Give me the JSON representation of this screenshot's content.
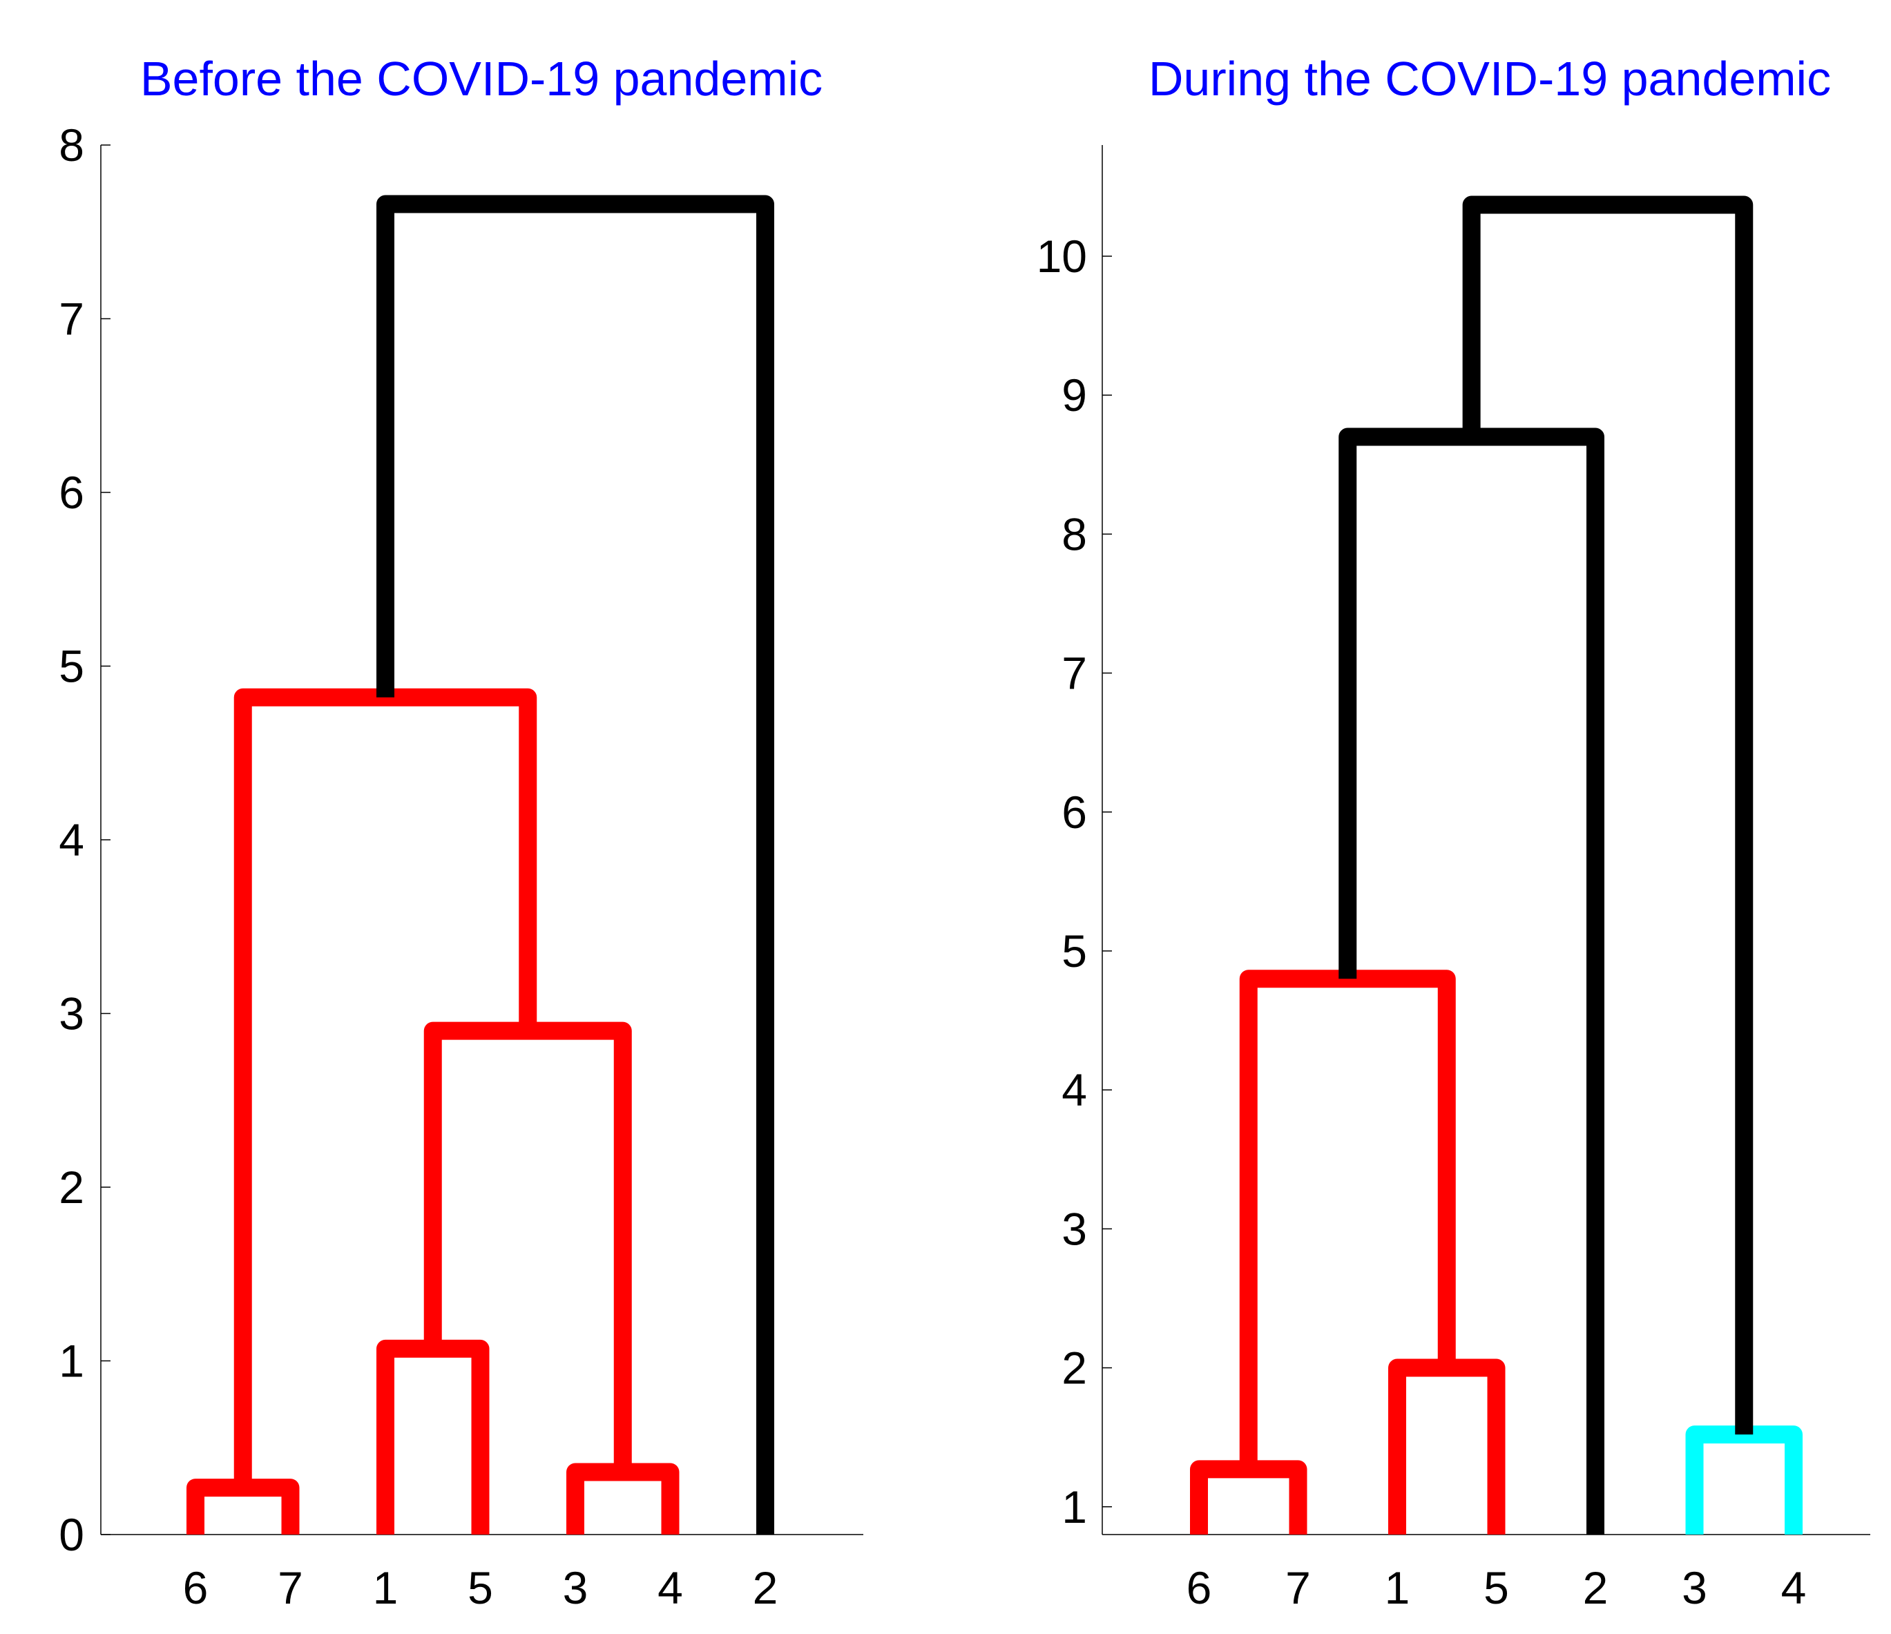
{
  "chart_data": [
    {
      "type": "dendrogram",
      "title": "Before the COVID-19 pandemic",
      "title_color": "#0000ff",
      "leaf_order": [
        "6",
        "7",
        "1",
        "5",
        "3",
        "4",
        "2"
      ],
      "yticks": [
        "0",
        "1",
        "2",
        "3",
        "4",
        "5",
        "6",
        "7",
        "8"
      ],
      "ylim": [
        0,
        8
      ],
      "merges": [
        {
          "left": "6",
          "right": "7",
          "height": 0.27,
          "color": "#ff0000"
        },
        {
          "left": "3",
          "right": "4",
          "height": 0.36,
          "color": "#ff0000"
        },
        {
          "left": "1",
          "right": "5",
          "height": 1.07,
          "color": "#ff0000"
        },
        {
          "left": "(1,5)",
          "right": "(3,4)",
          "height": 2.9,
          "color": "#ff0000"
        },
        {
          "left": "(6,7)",
          "right": "((1,5),(3,4))",
          "height": 4.82,
          "color": "#ff0000"
        },
        {
          "left": "((6,7),((1,5),(3,4)))",
          "right": "2",
          "height": 7.66,
          "color": "#000000"
        }
      ]
    },
    {
      "type": "dendrogram",
      "title": "During the COVID-19 pandemic",
      "title_color": "#0000ff",
      "leaf_order": [
        "6",
        "7",
        "1",
        "5",
        "2",
        "3",
        "4"
      ],
      "yticks": [
        "1",
        "2",
        "3",
        "4",
        "5",
        "6",
        "7",
        "8",
        "9",
        "10"
      ],
      "ylim": [
        0.8,
        10.8
      ],
      "merges": [
        {
          "left": "6",
          "right": "7",
          "height": 1.27,
          "color": "#ff0000"
        },
        {
          "left": "3",
          "right": "4",
          "height": 1.52,
          "color": "#00ffff"
        },
        {
          "left": "1",
          "right": "5",
          "height": 2.0,
          "color": "#ff0000"
        },
        {
          "left": "(6,7)",
          "right": "(1,5)",
          "height": 4.8,
          "color": "#ff0000"
        },
        {
          "left": "((6,7),(1,5))",
          "right": "2",
          "height": 8.7,
          "color": "#000000"
        },
        {
          "left": "(((6,7),(1,5)),2)",
          "right": "(3,4)",
          "height": 10.37,
          "color": "#000000"
        }
      ]
    }
  ]
}
